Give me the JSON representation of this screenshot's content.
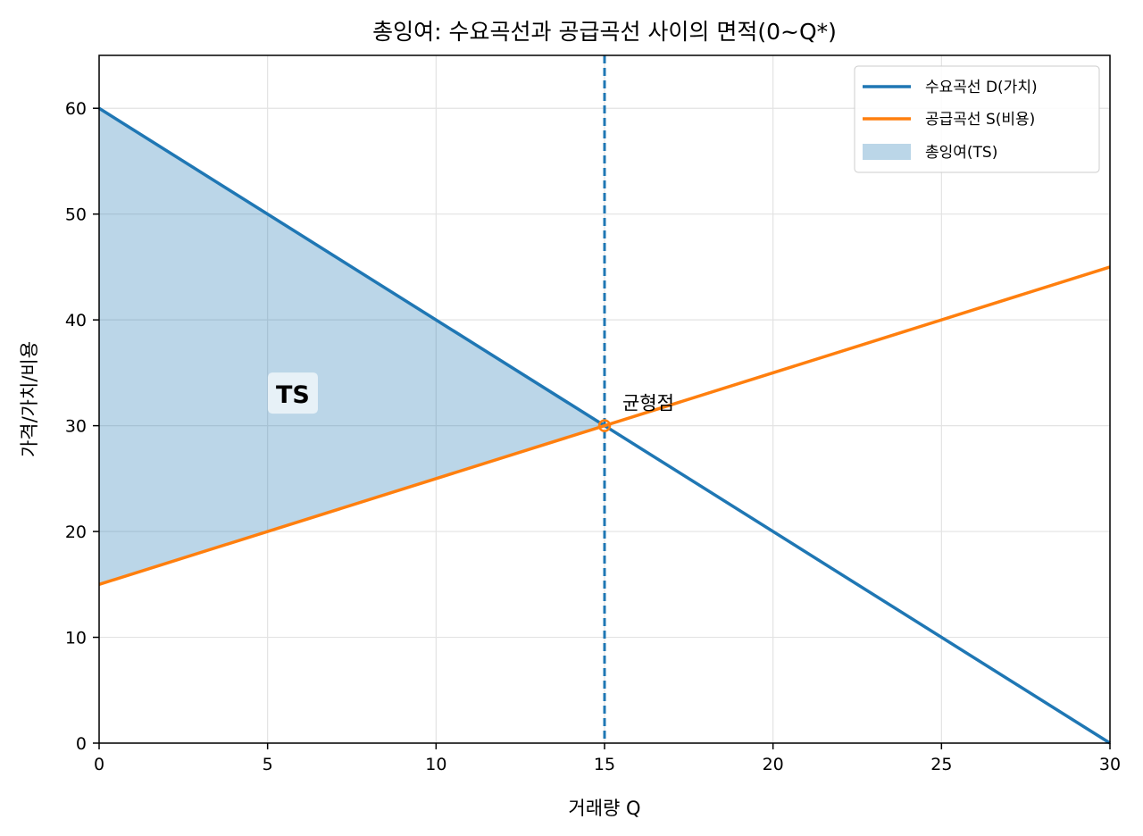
{
  "chart_data": {
    "type": "line",
    "title": "총잉여: 수요곡선과 공급곡선 사이의 면적(0~Q*)",
    "xlabel": "거래량 Q",
    "ylabel": "가격/가치/비용",
    "xlim": [
      0,
      30
    ],
    "ylim": [
      0,
      65
    ],
    "xticks": [
      0,
      5,
      10,
      15,
      20,
      25,
      30
    ],
    "yticks": [
      0,
      10,
      20,
      30,
      40,
      50,
      60
    ],
    "grid": true,
    "legend_position": "top-right",
    "series": [
      {
        "name": "수요곡선 D(가치)",
        "color": "#1f77b4",
        "x": [
          0,
          30
        ],
        "y": [
          60,
          0
        ]
      },
      {
        "name": "공급곡선 S(비용)",
        "color": "#ff7f0e",
        "x": [
          0,
          30
        ],
        "y": [
          15,
          45
        ]
      }
    ],
    "filled_area": {
      "name": "총잉여(TS)",
      "color": "#1f77b4",
      "opacity": 0.3,
      "x": [
        0,
        15
      ],
      "upper_series": "demand",
      "lower_series": "supply",
      "label": "TS",
      "label_x": 5.75,
      "label_y": 33
    },
    "equilibrium": {
      "x": 15,
      "y": 30,
      "label": "균형점",
      "vline_color": "#1f77b4"
    }
  }
}
